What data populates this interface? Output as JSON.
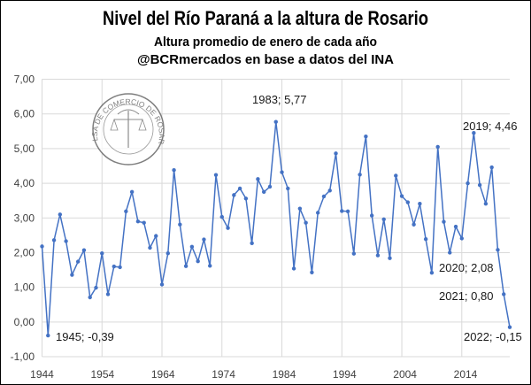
{
  "chart_data": {
    "type": "line",
    "title": "Nivel del Río Paraná a la altura de Rosario",
    "subtitle": "Altura promedio de enero de cada año",
    "source": "@BCRmercados en base a datos del INA",
    "logo_text": "BOLSA DE COMERCIO DE ROSARIO",
    "xlabel": "",
    "ylabel": "",
    "ylim": [
      -1,
      7
    ],
    "y_ticks": [
      "-1,00",
      "0,00",
      "1,00",
      "2,00",
      "3,00",
      "4,00",
      "5,00",
      "6,00",
      "7,00"
    ],
    "x_ticks": [
      "1944",
      "1954",
      "1964",
      "1974",
      "1984",
      "1994",
      "2004",
      "2014"
    ],
    "grid": true,
    "legend": "none",
    "color": "#4472C4",
    "x": [
      1944,
      1945,
      1946,
      1947,
      1948,
      1949,
      1950,
      1951,
      1952,
      1953,
      1954,
      1955,
      1956,
      1957,
      1958,
      1959,
      1960,
      1961,
      1962,
      1963,
      1964,
      1965,
      1966,
      1967,
      1968,
      1969,
      1970,
      1971,
      1972,
      1973,
      1974,
      1975,
      1976,
      1977,
      1978,
      1979,
      1980,
      1981,
      1982,
      1983,
      1984,
      1985,
      1986,
      1987,
      1988,
      1989,
      1990,
      1991,
      1992,
      1993,
      1994,
      1995,
      1996,
      1997,
      1998,
      1999,
      2000,
      2001,
      2002,
      2003,
      2004,
      2005,
      2006,
      2007,
      2008,
      2009,
      2010,
      2011,
      2012,
      2013,
      2014,
      2015,
      2016,
      2017,
      2018,
      2019,
      2020,
      2021,
      2022
    ],
    "values": [
      2.18,
      -0.39,
      2.36,
      3.1,
      2.33,
      1.36,
      1.74,
      2.07,
      0.71,
      0.99,
      1.98,
      0.8,
      1.6,
      1.58,
      3.19,
      3.75,
      2.9,
      2.86,
      2.14,
      2.48,
      1.08,
      1.98,
      4.38,
      2.81,
      1.61,
      2.17,
      1.75,
      2.38,
      1.62,
      4.24,
      3.03,
      2.71,
      3.66,
      3.85,
      3.56,
      2.27,
      4.12,
      3.75,
      3.9,
      5.77,
      4.32,
      3.85,
      1.54,
      3.27,
      2.86,
      1.43,
      3.15,
      3.62,
      3.79,
      4.86,
      3.2,
      3.19,
      1.97,
      4.25,
      5.35,
      3.07,
      1.92,
      2.96,
      1.84,
      4.22,
      3.63,
      3.45,
      2.81,
      3.41,
      2.39,
      1.42,
      5.05,
      2.89,
      2.0,
      2.75,
      2.41,
      4.0,
      5.45,
      3.95,
      3.41,
      4.46,
      2.08,
      0.8,
      -0.15
    ],
    "annotations": [
      {
        "year": 1945,
        "text": "1945; -0,39"
      },
      {
        "year": 1983,
        "text": "1983; 5,77"
      },
      {
        "year": 2019,
        "text": "2019; 4,46"
      },
      {
        "year": 2020,
        "text": "2020; 2,08"
      },
      {
        "year": 2021,
        "text": "2021; 0,80"
      },
      {
        "year": 2022,
        "text": "2022; -0,15"
      }
    ]
  }
}
